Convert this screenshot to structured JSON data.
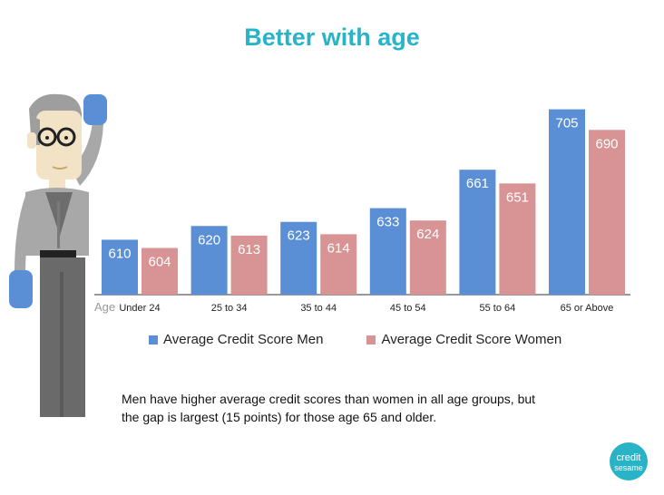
{
  "title": "Better with age",
  "note": "Men have higher average credit scores than women in all age groups, but the gap is largest (15 points) for those age 65 and older.",
  "colors": {
    "title": "#29b3c7",
    "men": "#5a8fd6",
    "women": "#d89494",
    "accent": "#29b3c7"
  },
  "logo": {
    "line1": "credit",
    "line2": "sesame"
  },
  "chart_data": {
    "type": "bar",
    "xlabel": "Age",
    "ylabel": "",
    "ylim": [
      570,
      710
    ],
    "grid": false,
    "legend_position": "bottom",
    "categories": [
      "Under 24",
      "25 to 34",
      "35 to 44",
      "45 to 54",
      "55 to 64",
      "65 or Above"
    ],
    "series": [
      {
        "name": "Average Credit Score Men",
        "values": [
          610,
          620,
          623,
          633,
          661,
          705
        ]
      },
      {
        "name": "Average Credit Score Women",
        "values": [
          604,
          613,
          614,
          624,
          651,
          690
        ]
      }
    ]
  }
}
